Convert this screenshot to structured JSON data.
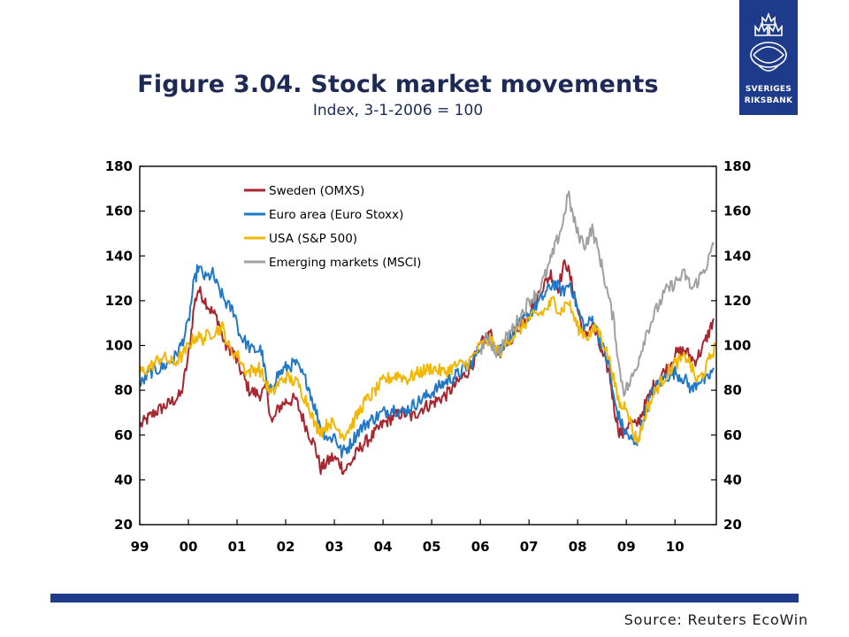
{
  "figure": {
    "title": "Figure 3.04. Stock market movements",
    "subtitle": "Index, 3-1-2006 = 100"
  },
  "logo": {
    "line1": "SVERIGES",
    "line2": "RIKSBANK",
    "icon": "crown-emblem-icon",
    "color": "#1e3a8a"
  },
  "source": "Source: Reuters EcoWin",
  "chart_data": {
    "type": "line",
    "x_unit": "year",
    "xlim": [
      1999,
      2010.85
    ],
    "ylim": [
      20,
      180
    ],
    "y_ticks": [
      180,
      160,
      140,
      120,
      100,
      80,
      60,
      40,
      20
    ],
    "x_ticks": [
      {
        "value": 1999,
        "label": "99"
      },
      {
        "value": 2000,
        "label": "00"
      },
      {
        "value": 2001,
        "label": "01"
      },
      {
        "value": 2002,
        "label": "02"
      },
      {
        "value": 2003,
        "label": "03"
      },
      {
        "value": 2004,
        "label": "04"
      },
      {
        "value": 2005,
        "label": "05"
      },
      {
        "value": 2006,
        "label": "06"
      },
      {
        "value": 2007,
        "label": "07"
      },
      {
        "value": 2008,
        "label": "08"
      },
      {
        "value": 2009,
        "label": "09"
      },
      {
        "value": 2010,
        "label": "10"
      }
    ],
    "legend_position": "top-left",
    "grid": false,
    "dual_y_axis": true,
    "series": [
      {
        "name": "Sweden (OMXS)",
        "color": "#a8262f",
        "points": [
          [
            1999.0,
            64
          ],
          [
            1999.3,
            70
          ],
          [
            1999.6,
            74
          ],
          [
            1999.85,
            78
          ],
          [
            2000.0,
            95
          ],
          [
            2000.12,
            118
          ],
          [
            2000.2,
            125
          ],
          [
            2000.35,
            120
          ],
          [
            2000.45,
            116
          ],
          [
            2000.6,
            112
          ],
          [
            2000.75,
            100
          ],
          [
            2000.9,
            98
          ],
          [
            2001.05,
            90
          ],
          [
            2001.25,
            80
          ],
          [
            2001.45,
            78
          ],
          [
            2001.6,
            80
          ],
          [
            2001.72,
            65
          ],
          [
            2001.85,
            72
          ],
          [
            2002.0,
            75
          ],
          [
            2002.2,
            76
          ],
          [
            2002.45,
            62
          ],
          [
            2002.6,
            55
          ],
          [
            2002.72,
            45
          ],
          [
            2002.82,
            47
          ],
          [
            2002.95,
            50
          ],
          [
            2003.1,
            48
          ],
          [
            2003.2,
            44
          ],
          [
            2003.35,
            48
          ],
          [
            2003.55,
            55
          ],
          [
            2003.8,
            60
          ],
          [
            2004.0,
            65
          ],
          [
            2004.2,
            68
          ],
          [
            2004.4,
            70
          ],
          [
            2004.6,
            68
          ],
          [
            2004.8,
            72
          ],
          [
            2005.0,
            74
          ],
          [
            2005.3,
            78
          ],
          [
            2005.6,
            85
          ],
          [
            2005.8,
            90
          ],
          [
            2006.0,
            100
          ],
          [
            2006.2,
            106
          ],
          [
            2006.35,
            96
          ],
          [
            2006.5,
            99
          ],
          [
            2006.75,
            107
          ],
          [
            2007.0,
            115
          ],
          [
            2007.25,
            125
          ],
          [
            2007.45,
            132
          ],
          [
            2007.6,
            126
          ],
          [
            2007.75,
            138
          ],
          [
            2007.85,
            130
          ],
          [
            2008.0,
            116
          ],
          [
            2008.15,
            103
          ],
          [
            2008.3,
            110
          ],
          [
            2008.5,
            96
          ],
          [
            2008.65,
            88
          ],
          [
            2008.75,
            72
          ],
          [
            2008.85,
            62
          ],
          [
            2008.95,
            60
          ],
          [
            2009.05,
            66
          ],
          [
            2009.2,
            64
          ],
          [
            2009.4,
            74
          ],
          [
            2009.6,
            84
          ],
          [
            2009.85,
            90
          ],
          [
            2010.0,
            96
          ],
          [
            2010.2,
            98
          ],
          [
            2010.4,
            93
          ],
          [
            2010.55,
            98
          ],
          [
            2010.7,
            106
          ],
          [
            2010.8,
            112
          ]
        ]
      },
      {
        "name": "Euro area (Euro Stoxx)",
        "color": "#1f78c8",
        "points": [
          [
            1999.0,
            82
          ],
          [
            1999.2,
            88
          ],
          [
            1999.45,
            90
          ],
          [
            1999.7,
            94
          ],
          [
            1999.85,
            100
          ],
          [
            2000.0,
            110
          ],
          [
            2000.1,
            126
          ],
          [
            2000.2,
            135
          ],
          [
            2000.35,
            130
          ],
          [
            2000.5,
            132
          ],
          [
            2000.6,
            126
          ],
          [
            2000.8,
            118
          ],
          [
            2000.95,
            115
          ],
          [
            2001.05,
            105
          ],
          [
            2001.3,
            98
          ],
          [
            2001.5,
            98
          ],
          [
            2001.65,
            78
          ],
          [
            2001.8,
            86
          ],
          [
            2002.0,
            90
          ],
          [
            2002.2,
            92
          ],
          [
            2002.45,
            83
          ],
          [
            2002.6,
            72
          ],
          [
            2002.75,
            62
          ],
          [
            2002.9,
            58
          ],
          [
            2003.0,
            60
          ],
          [
            2003.15,
            52
          ],
          [
            2003.3,
            55
          ],
          [
            2003.5,
            62
          ],
          [
            2003.7,
            66
          ],
          [
            2004.0,
            70
          ],
          [
            2004.2,
            72
          ],
          [
            2004.4,
            70
          ],
          [
            2004.6,
            73
          ],
          [
            2004.8,
            76
          ],
          [
            2005.0,
            79
          ],
          [
            2005.3,
            84
          ],
          [
            2005.6,
            88
          ],
          [
            2005.85,
            93
          ],
          [
            2006.0,
            100
          ],
          [
            2006.2,
            104
          ],
          [
            2006.35,
            98
          ],
          [
            2006.5,
            101
          ],
          [
            2006.75,
            108
          ],
          [
            2007.0,
            114
          ],
          [
            2007.3,
            122
          ],
          [
            2007.5,
            128
          ],
          [
            2007.7,
            124
          ],
          [
            2007.85,
            128
          ],
          [
            2008.0,
            116
          ],
          [
            2008.15,
            108
          ],
          [
            2008.3,
            112
          ],
          [
            2008.5,
            100
          ],
          [
            2008.65,
            90
          ],
          [
            2008.75,
            75
          ],
          [
            2008.85,
            68
          ],
          [
            2008.95,
            62
          ],
          [
            2009.1,
            58
          ],
          [
            2009.2,
            55
          ],
          [
            2009.35,
            68
          ],
          [
            2009.55,
            80
          ],
          [
            2009.8,
            86
          ],
          [
            2010.0,
            88
          ],
          [
            2010.2,
            85
          ],
          [
            2010.35,
            80
          ],
          [
            2010.5,
            85
          ],
          [
            2010.65,
            84
          ],
          [
            2010.8,
            90
          ]
        ]
      },
      {
        "name": "USA (S&P 500)",
        "color": "#f2b705",
        "points": [
          [
            1999.0,
            88
          ],
          [
            1999.2,
            90
          ],
          [
            1999.45,
            95
          ],
          [
            1999.7,
            92
          ],
          [
            1999.9,
            96
          ],
          [
            2000.0,
            100
          ],
          [
            2000.15,
            104
          ],
          [
            2000.3,
            103
          ],
          [
            2000.5,
            106
          ],
          [
            2000.7,
            108
          ],
          [
            2000.85,
            98
          ],
          [
            2001.0,
            96
          ],
          [
            2001.2,
            88
          ],
          [
            2001.45,
            90
          ],
          [
            2001.7,
            78
          ],
          [
            2001.85,
            83
          ],
          [
            2002.0,
            86
          ],
          [
            2002.25,
            83
          ],
          [
            2002.5,
            72
          ],
          [
            2002.6,
            64
          ],
          [
            2002.75,
            62
          ],
          [
            2002.9,
            66
          ],
          [
            2003.1,
            62
          ],
          [
            2003.2,
            60
          ],
          [
            2003.4,
            66
          ],
          [
            2003.6,
            74
          ],
          [
            2003.85,
            80
          ],
          [
            2004.0,
            84
          ],
          [
            2004.3,
            87
          ],
          [
            2004.5,
            85
          ],
          [
            2004.75,
            88
          ],
          [
            2005.0,
            90
          ],
          [
            2005.25,
            88
          ],
          [
            2005.5,
            91
          ],
          [
            2005.75,
            92
          ],
          [
            2006.0,
            100
          ],
          [
            2006.2,
            102
          ],
          [
            2006.4,
            97
          ],
          [
            2006.6,
            103
          ],
          [
            2006.85,
            108
          ],
          [
            2007.0,
            112
          ],
          [
            2007.3,
            115
          ],
          [
            2007.5,
            120
          ],
          [
            2007.65,
            115
          ],
          [
            2007.8,
            120
          ],
          [
            2008.0,
            108
          ],
          [
            2008.2,
            104
          ],
          [
            2008.4,
            108
          ],
          [
            2008.55,
            100
          ],
          [
            2008.7,
            90
          ],
          [
            2008.8,
            78
          ],
          [
            2008.9,
            72
          ],
          [
            2009.0,
            74
          ],
          [
            2009.15,
            60
          ],
          [
            2009.25,
            58
          ],
          [
            2009.4,
            70
          ],
          [
            2009.6,
            80
          ],
          [
            2009.85,
            88
          ],
          [
            2010.0,
            92
          ],
          [
            2010.25,
            95
          ],
          [
            2010.45,
            84
          ],
          [
            2010.6,
            88
          ],
          [
            2010.75,
            96
          ],
          [
            2010.85,
            100
          ]
        ]
      },
      {
        "name": "Emerging markets (MSCI)",
        "color": "#a0a0a0",
        "points": [
          [
            2006.0,
            98
          ],
          [
            2006.15,
            104
          ],
          [
            2006.35,
            96
          ],
          [
            2006.55,
            104
          ],
          [
            2006.8,
            112
          ],
          [
            2007.0,
            120
          ],
          [
            2007.2,
            124
          ],
          [
            2007.4,
            135
          ],
          [
            2007.55,
            145
          ],
          [
            2007.7,
            155
          ],
          [
            2007.8,
            168
          ],
          [
            2007.9,
            158
          ],
          [
            2008.0,
            150
          ],
          [
            2008.15,
            145
          ],
          [
            2008.3,
            152
          ],
          [
            2008.45,
            140
          ],
          [
            2008.6,
            125
          ],
          [
            2008.75,
            110
          ],
          [
            2008.85,
            90
          ],
          [
            2008.95,
            80
          ],
          [
            2009.05,
            82
          ],
          [
            2009.2,
            90
          ],
          [
            2009.4,
            105
          ],
          [
            2009.6,
            115
          ],
          [
            2009.8,
            124
          ],
          [
            2010.0,
            128
          ],
          [
            2010.2,
            132
          ],
          [
            2010.35,
            125
          ],
          [
            2010.5,
            130
          ],
          [
            2010.65,
            136
          ],
          [
            2010.8,
            145
          ]
        ]
      }
    ]
  }
}
